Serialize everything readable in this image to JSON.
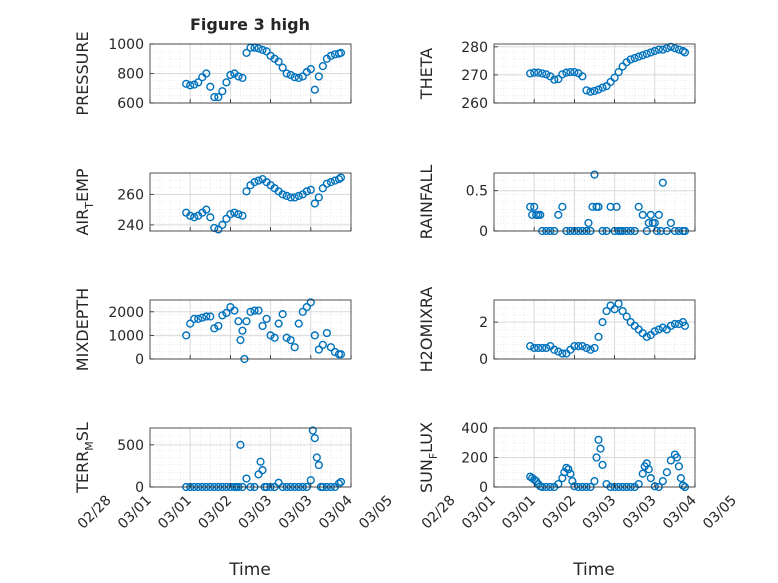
{
  "figure": {
    "title": "Figure 3 high"
  },
  "x_axis": {
    "label": "Time",
    "ticks": [
      "02/28",
      "03/01",
      "03/01",
      "03/02",
      "03/03",
      "03/03",
      "03/04",
      "03/05"
    ]
  },
  "colors": {
    "marker": "#0072BD",
    "axes": "#262626",
    "grid": "#d9d9d9",
    "background": "#ffffff"
  },
  "chart_data": [
    {
      "type": "scatter",
      "ylabel": "PRESSURE",
      "ylim": [
        600,
        1000
      ],
      "yticks": [
        600,
        800,
        1000
      ],
      "xlim": [
        0,
        5
      ],
      "grid": true,
      "x": [
        0.9,
        1.0,
        1.1,
        1.2,
        1.3,
        1.4,
        1.5,
        1.6,
        1.7,
        1.8,
        1.9,
        2.0,
        2.1,
        2.2,
        2.3,
        2.4,
        2.5,
        2.6,
        2.7,
        2.8,
        2.9,
        3.0,
        3.1,
        3.2,
        3.3,
        3.4,
        3.5,
        3.6,
        3.7,
        3.8,
        3.9,
        4.0,
        4.1,
        4.2,
        4.3,
        4.4,
        4.5,
        4.6,
        4.7,
        4.75
      ],
      "y": [
        730,
        720,
        725,
        740,
        775,
        800,
        710,
        640,
        640,
        680,
        740,
        790,
        800,
        780,
        770,
        940,
        975,
        975,
        970,
        960,
        950,
        920,
        900,
        880,
        840,
        800,
        790,
        775,
        770,
        780,
        810,
        830,
        690,
        780,
        850,
        900,
        920,
        930,
        935,
        940
      ]
    },
    {
      "type": "scatter",
      "ylabel": "THETA",
      "ylim": [
        260,
        281
      ],
      "yticks": [
        260,
        270,
        280
      ],
      "xlim": [
        0,
        5
      ],
      "grid": true,
      "x": [
        0.9,
        1.0,
        1.1,
        1.2,
        1.3,
        1.4,
        1.5,
        1.6,
        1.7,
        1.8,
        1.9,
        2.0,
        2.1,
        2.2,
        2.3,
        2.4,
        2.5,
        2.6,
        2.7,
        2.8,
        2.9,
        3.0,
        3.1,
        3.2,
        3.3,
        3.4,
        3.5,
        3.6,
        3.7,
        3.8,
        3.9,
        4.0,
        4.1,
        4.2,
        4.3,
        4.4,
        4.5,
        4.6,
        4.7,
        4.75
      ],
      "y": [
        270.5,
        270.8,
        270.8,
        270.5,
        270.2,
        269.5,
        268.3,
        268.5,
        270.2,
        270.8,
        271.0,
        271.0,
        270.6,
        269.5,
        264.5,
        264.0,
        264.3,
        264.8,
        265.5,
        266.0,
        267.5,
        269.0,
        271.0,
        273.0,
        274.5,
        275.5,
        276.0,
        276.5,
        277.0,
        277.5,
        278.0,
        278.5,
        279.0,
        279.0,
        279.5,
        280.0,
        279.5,
        279.0,
        278.5,
        278.0
      ]
    },
    {
      "type": "scatter",
      "ylabel": "AIR_TEMP",
      "ylim": [
        236,
        274
      ],
      "yticks": [
        240,
        260
      ],
      "xlim": [
        0,
        5
      ],
      "grid": true,
      "x": [
        0.9,
        1.0,
        1.1,
        1.2,
        1.3,
        1.4,
        1.5,
        1.6,
        1.7,
        1.8,
        1.9,
        2.0,
        2.1,
        2.2,
        2.3,
        2.4,
        2.5,
        2.6,
        2.7,
        2.8,
        2.9,
        3.0,
        3.1,
        3.2,
        3.3,
        3.4,
        3.5,
        3.6,
        3.7,
        3.8,
        3.9,
        4.0,
        4.1,
        4.2,
        4.3,
        4.4,
        4.5,
        4.6,
        4.7,
        4.75
      ],
      "y": [
        248,
        246,
        245,
        246,
        248,
        250,
        245,
        238,
        237,
        240,
        244,
        247,
        248,
        247,
        246,
        262,
        266,
        268,
        269,
        270,
        268,
        266,
        264,
        262,
        260,
        259,
        258,
        258,
        259,
        260,
        262,
        263,
        254,
        258,
        264,
        267,
        268,
        269,
        270,
        271
      ]
    },
    {
      "type": "scatter",
      "ylabel": "RAINFALL",
      "ylim": [
        0,
        0.72
      ],
      "yticks": [
        0,
        0.5
      ],
      "xlim": [
        0,
        5
      ],
      "grid": true,
      "x": [
        0.9,
        0.95,
        1.0,
        1.05,
        1.1,
        1.15,
        1.2,
        1.3,
        1.4,
        1.5,
        1.6,
        1.7,
        1.8,
        1.9,
        2.0,
        2.1,
        2.2,
        2.3,
        2.35,
        2.4,
        2.45,
        2.5,
        2.55,
        2.6,
        2.7,
        2.8,
        2.9,
        3.0,
        3.05,
        3.1,
        3.15,
        3.2,
        3.3,
        3.4,
        3.5,
        3.6,
        3.7,
        3.8,
        3.85,
        3.9,
        3.95,
        4.0,
        4.05,
        4.1,
        4.15,
        4.2,
        4.3,
        4.4,
        4.5,
        4.6,
        4.7,
        4.75
      ],
      "y": [
        0.3,
        0.2,
        0.3,
        0.2,
        0.2,
        0.2,
        0.0,
        0.0,
        0.0,
        0.0,
        0.2,
        0.3,
        0.0,
        0.0,
        0.0,
        0.0,
        0.0,
        0.0,
        0.1,
        0.0,
        0.3,
        0.7,
        0.3,
        0.3,
        0.0,
        0.0,
        0.3,
        0.0,
        0.3,
        0.0,
        0.0,
        0.0,
        0.0,
        0.0,
        0.0,
        0.3,
        0.2,
        0.0,
        0.1,
        0.2,
        0.1,
        0.1,
        0.0,
        0.2,
        0.0,
        0.6,
        0.0,
        0.1,
        0.0,
        0.0,
        0.0,
        0.0
      ]
    },
    {
      "type": "scatter",
      "ylabel": "MIXDEPTH",
      "ylim": [
        0,
        2500
      ],
      "yticks": [
        0,
        1000,
        2000
      ],
      "xlim": [
        0,
        5
      ],
      "grid": true,
      "x": [
        0.9,
        1.0,
        1.1,
        1.2,
        1.3,
        1.4,
        1.5,
        1.6,
        1.7,
        1.8,
        1.9,
        2.0,
        2.1,
        2.2,
        2.25,
        2.3,
        2.35,
        2.4,
        2.5,
        2.6,
        2.7,
        2.8,
        2.9,
        3.0,
        3.1,
        3.2,
        3.3,
        3.4,
        3.5,
        3.6,
        3.7,
        3.8,
        3.9,
        4.0,
        4.1,
        4.2,
        4.3,
        4.4,
        4.5,
        4.6,
        4.7,
        4.75
      ],
      "y": [
        1000,
        1500,
        1700,
        1700,
        1750,
        1800,
        1800,
        1300,
        1400,
        1850,
        1950,
        2200,
        2050,
        1600,
        800,
        1200,
        0,
        1600,
        2000,
        2050,
        2050,
        1400,
        1700,
        1000,
        900,
        1500,
        1900,
        900,
        800,
        500,
        1500,
        2000,
        2200,
        2400,
        1000,
        400,
        600,
        1100,
        500,
        300,
        200,
        200
      ]
    },
    {
      "type": "scatter",
      "ylabel": "H2OMIXRA",
      "ylim": [
        0,
        3.2
      ],
      "yticks": [
        0,
        2
      ],
      "xlim": [
        0,
        5
      ],
      "grid": true,
      "x": [
        0.9,
        1.0,
        1.1,
        1.2,
        1.3,
        1.4,
        1.5,
        1.6,
        1.7,
        1.8,
        1.9,
        2.0,
        2.1,
        2.2,
        2.3,
        2.4,
        2.5,
        2.6,
        2.7,
        2.8,
        2.9,
        3.0,
        3.1,
        3.2,
        3.3,
        3.4,
        3.5,
        3.6,
        3.7,
        3.8,
        3.9,
        4.0,
        4.1,
        4.2,
        4.3,
        4.4,
        4.5,
        4.6,
        4.7,
        4.75
      ],
      "y": [
        0.7,
        0.6,
        0.6,
        0.6,
        0.6,
        0.7,
        0.5,
        0.4,
        0.3,
        0.3,
        0.5,
        0.7,
        0.7,
        0.7,
        0.6,
        0.5,
        0.6,
        1.2,
        2.0,
        2.6,
        2.9,
        2.7,
        3.0,
        2.6,
        2.3,
        2.0,
        1.8,
        1.6,
        1.4,
        1.2,
        1.3,
        1.5,
        1.6,
        1.7,
        1.6,
        1.8,
        1.9,
        1.9,
        2.0,
        1.8
      ]
    },
    {
      "type": "scatter",
      "ylabel": "TERR_MSL",
      "ylim": [
        0,
        700
      ],
      "yticks": [
        0,
        500
      ],
      "xlim": [
        0,
        5
      ],
      "grid": true,
      "x": [
        0.9,
        1.0,
        1.1,
        1.2,
        1.3,
        1.4,
        1.5,
        1.6,
        1.7,
        1.8,
        1.9,
        2.0,
        2.1,
        2.15,
        2.2,
        2.25,
        2.3,
        2.4,
        2.5,
        2.6,
        2.7,
        2.75,
        2.8,
        2.85,
        2.9,
        3.0,
        3.1,
        3.2,
        3.3,
        3.4,
        3.5,
        3.6,
        3.7,
        3.8,
        3.9,
        4.0,
        4.05,
        4.1,
        4.15,
        4.2,
        4.25,
        4.3,
        4.4,
        4.5,
        4.6,
        4.7,
        4.75
      ],
      "y": [
        0,
        0,
        0,
        0,
        0,
        0,
        0,
        0,
        0,
        0,
        0,
        0,
        0,
        0,
        0,
        500,
        0,
        100,
        0,
        0,
        150,
        300,
        200,
        0,
        0,
        0,
        0,
        50,
        0,
        0,
        0,
        0,
        0,
        0,
        0,
        80,
        670,
        580,
        350,
        260,
        0,
        0,
        0,
        0,
        0,
        40,
        60
      ]
    },
    {
      "type": "scatter",
      "ylabel": "SUN_FLUX",
      "ylim": [
        0,
        400
      ],
      "yticks": [
        0,
        200,
        400
      ],
      "xlim": [
        0,
        5
      ],
      "grid": true,
      "x": [
        0.9,
        0.95,
        1.0,
        1.05,
        1.1,
        1.15,
        1.2,
        1.3,
        1.4,
        1.5,
        1.6,
        1.7,
        1.75,
        1.8,
        1.85,
        1.9,
        1.95,
        2.0,
        2.1,
        2.2,
        2.3,
        2.4,
        2.5,
        2.55,
        2.6,
        2.65,
        2.7,
        2.8,
        2.9,
        3.0,
        3.1,
        3.2,
        3.3,
        3.4,
        3.5,
        3.6,
        3.7,
        3.75,
        3.8,
        3.85,
        3.9,
        4.0,
        4.1,
        4.2,
        4.3,
        4.4,
        4.5,
        4.55,
        4.6,
        4.65,
        4.7,
        4.75
      ],
      "y": [
        70,
        60,
        50,
        40,
        20,
        5,
        0,
        0,
        0,
        0,
        20,
        60,
        100,
        130,
        120,
        90,
        40,
        5,
        0,
        0,
        0,
        0,
        40,
        200,
        320,
        260,
        150,
        20,
        0,
        0,
        0,
        0,
        0,
        0,
        0,
        20,
        90,
        140,
        160,
        120,
        60,
        5,
        0,
        40,
        100,
        180,
        220,
        200,
        140,
        60,
        10,
        0
      ]
    }
  ]
}
